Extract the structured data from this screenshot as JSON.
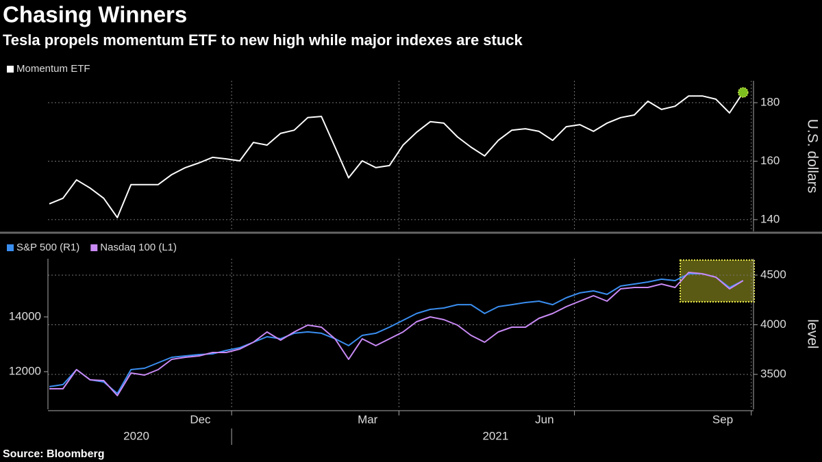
{
  "title": "Chasing Winners",
  "subtitle": "Tesla propels momentum ETF to new high while major indexes are stuck",
  "source": "Source: Bloomberg",
  "chart_data": [
    {
      "type": "line",
      "series": [
        {
          "name": "Momentum ETF",
          "color": "#ffffff",
          "values": [
            145.4,
            147.3,
            153.6,
            150.8,
            147.3,
            140.7,
            152,
            152,
            152,
            155.4,
            157.8,
            159.4,
            161.3,
            160.8,
            160.1,
            166.4,
            165.5,
            169.5,
            170.6,
            174.9,
            175.3,
            164.8,
            154.3,
            160.1,
            157.8,
            158.5,
            165.5,
            169.9,
            173.5,
            173,
            168.3,
            164.8,
            161.8,
            167.1,
            170.6,
            171.1,
            170.2,
            167.1,
            171.8,
            172.5,
            170.2,
            173,
            174.9,
            175.8,
            180.5,
            177.7,
            178.8,
            182.3,
            182.3,
            181.2,
            176.5,
            183.5
          ]
        }
      ],
      "xlim": [
        0,
        52
      ],
      "xgrid": [
        13.4,
        25.7,
        38.6,
        51.6
      ],
      "ylim": [
        136,
        187.5
      ],
      "yticks": [
        140,
        160,
        180
      ],
      "y_axis_side": "right",
      "ylabel": "U.S. dollars",
      "grid": true,
      "last_point_marker": "#7dbf1f"
    },
    {
      "type": "line",
      "series": [
        {
          "name": "S&P 500  (R1)",
          "color": "#3a8ef0",
          "axis": "y2",
          "values": [
            3376,
            3397,
            3548,
            3445,
            3424,
            3307,
            3548,
            3562,
            3617,
            3672,
            3686,
            3700,
            3707,
            3741,
            3769,
            3824,
            3879,
            3859,
            3914,
            3928,
            3914,
            3859,
            3790,
            3893,
            3914,
            3976,
            4045,
            4114,
            4155,
            4169,
            4203,
            4203,
            4114,
            4183,
            4203,
            4224,
            4238,
            4203,
            4272,
            4321,
            4341,
            4307,
            4390,
            4410,
            4431,
            4459,
            4445,
            4514,
            4514,
            4479,
            4376,
            4445
          ]
        },
        {
          "name": "Nasdaq 100  (L1)",
          "color": "#c98af5",
          "values": [
            11375,
            11375,
            12075,
            11700,
            11675,
            11125,
            11950,
            11875,
            12075,
            12450,
            12525,
            12575,
            12700,
            12700,
            12825,
            13075,
            13450,
            13150,
            13450,
            13700,
            13625,
            13200,
            12450,
            13200,
            12950,
            13200,
            13450,
            13825,
            14000,
            13900,
            13700,
            13325,
            13075,
            13450,
            13625,
            13625,
            13950,
            14125,
            14375,
            14575,
            14775,
            14575,
            15025,
            15075,
            15075,
            15200,
            15075,
            15625,
            15575,
            15450,
            15025,
            15325
          ]
        }
      ],
      "xlim": [
        0,
        52
      ],
      "xgrid": [
        13.4,
        25.7,
        38.6,
        51.6
      ],
      "xticks": [
        {
          "value": 11.1,
          "label": "Dec"
        },
        {
          "value": 23.4,
          "label": "Mar"
        },
        {
          "value": 36.4,
          "label": "Jun"
        },
        {
          "value": 49.5,
          "label": "Sep"
        }
      ],
      "xyears": [
        {
          "value": 6.4,
          "label": "2020"
        },
        {
          "value": 32.8,
          "label": "2021"
        }
      ],
      "ylim": [
        10625,
        16125
      ],
      "yticks": [
        12000,
        14000
      ],
      "y2lim": [
        3148,
        4665.5
      ],
      "y2ticks": [
        3500,
        4000,
        4500
      ],
      "y2label": "level",
      "grid": true
    }
  ]
}
